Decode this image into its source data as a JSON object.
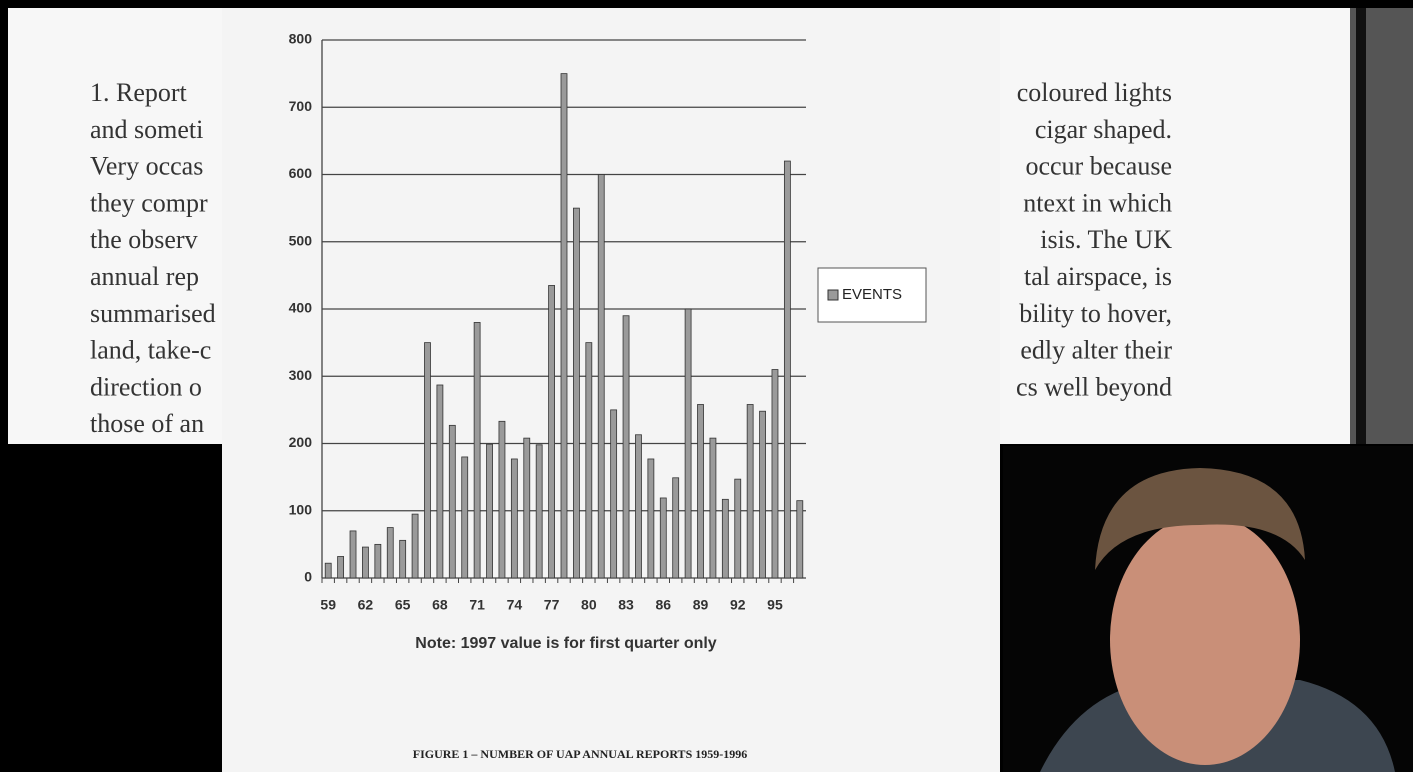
{
  "document": {
    "left_lines": [
      "1.  Report",
      "and someti",
      "Very occas",
      "they compr",
      "the observ",
      "annual rep",
      "summarised",
      "land, take-c",
      " direction o",
      "those of an"
    ],
    "right_lines": [
      "coloured lights",
      "cigar shaped.",
      "occur because",
      "ntext in which",
      "isis.  The UK",
      "tal airspace, is",
      "bility to hover,",
      "edly alter their",
      "cs well beyond"
    ]
  },
  "chart_data": {
    "type": "bar",
    "title": "FIGURE 1 – NUMBER OF UAP ANNUAL REPORTS 1959-1996",
    "annotation": "Note: 1997 value is for first quarter only",
    "categories": [
      "59",
      null,
      null,
      "62",
      null,
      null,
      "65",
      null,
      null,
      "68",
      null,
      null,
      "71",
      null,
      null,
      "74",
      null,
      null,
      "77",
      null,
      null,
      "80",
      null,
      null,
      "83",
      null,
      null,
      "86",
      null,
      null,
      "89",
      null,
      null,
      "92",
      null,
      null,
      "95",
      null,
      null
    ],
    "series": [
      {
        "name": "EVENTS",
        "color": "#9a9a9a",
        "values": [
          22,
          32,
          70,
          46,
          50,
          75,
          56,
          95,
          350,
          287,
          227,
          180,
          380,
          199,
          233,
          177,
          208,
          198,
          435,
          750,
          550,
          350,
          600,
          250,
          390,
          213,
          177,
          119,
          149,
          400,
          258,
          208,
          117,
          147,
          258,
          248,
          310,
          620,
          115
        ]
      }
    ],
    "ylim": [
      0,
      800
    ],
    "yticks": [
      0,
      100,
      200,
      300,
      400,
      500,
      600,
      700,
      800
    ],
    "grid": true,
    "legend": "right"
  }
}
